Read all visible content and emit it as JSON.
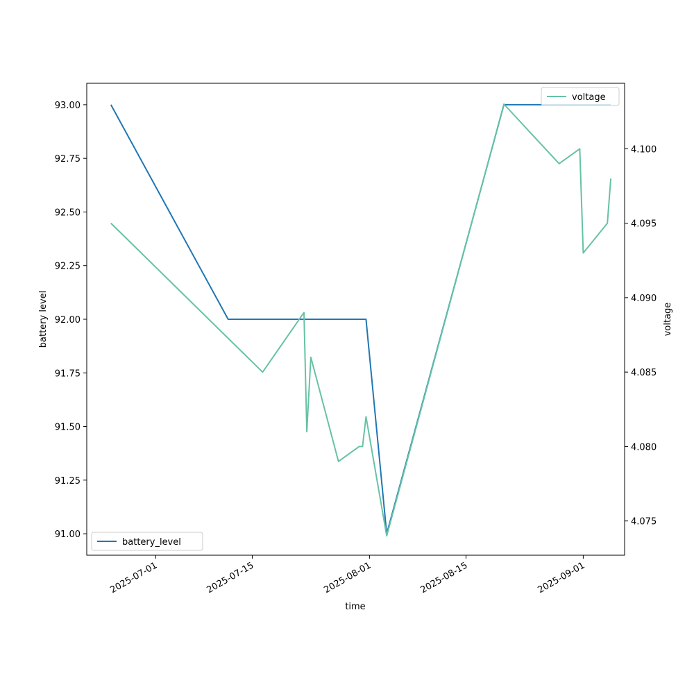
{
  "chart_data": {
    "type": "line",
    "xlabel": "time",
    "ylabel": "battery level",
    "y2label": "voltage",
    "xlim": [
      "2025-06-21",
      "2025-09-07"
    ],
    "ylim": [
      90.9,
      93.1
    ],
    "y2lim": [
      4.0727,
      4.1044
    ],
    "x_ticks": [
      "2025-07-01",
      "2025-07-15",
      "2025-08-01",
      "2025-08-15",
      "2025-09-01"
    ],
    "y_ticks": [
      "91.00",
      "91.25",
      "91.50",
      "91.75",
      "92.00",
      "92.25",
      "92.50",
      "92.75",
      "93.00"
    ],
    "y2_ticks": [
      "4.075",
      "4.080",
      "4.085",
      "4.090",
      "4.095",
      "4.100"
    ],
    "series": [
      {
        "name": "battery_level",
        "axis": "left",
        "color": "#1f77b4",
        "legend": "bottom-left",
        "points": [
          {
            "x": "2025-06-24T12:00",
            "y": 93.0
          },
          {
            "x": "2025-07-11T12:00",
            "y": 92.0
          },
          {
            "x": "2025-07-31T12:00",
            "y": 92.0
          },
          {
            "x": "2025-08-03T12:00",
            "y": 91.0
          },
          {
            "x": "2025-08-20T12:00",
            "y": 93.0
          },
          {
            "x": "2025-09-05T00:00",
            "y": 93.0
          }
        ]
      },
      {
        "name": "voltage",
        "axis": "right",
        "color": "#66c2a5",
        "legend": "top-right",
        "points": [
          {
            "x": "2025-06-24T12:00",
            "y": 4.095
          },
          {
            "x": "2025-07-16T12:00",
            "y": 4.085
          },
          {
            "x": "2025-07-22T12:00",
            "y": 4.089
          },
          {
            "x": "2025-07-22T22:00",
            "y": 4.081
          },
          {
            "x": "2025-07-23T12:00",
            "y": 4.086
          },
          {
            "x": "2025-07-27T12:00",
            "y": 4.079
          },
          {
            "x": "2025-07-30T12:00",
            "y": 4.08
          },
          {
            "x": "2025-07-31T00:00",
            "y": 4.08
          },
          {
            "x": "2025-07-31T12:00",
            "y": 4.082
          },
          {
            "x": "2025-08-03T12:00",
            "y": 4.074
          },
          {
            "x": "2025-08-20T12:00",
            "y": 4.103
          },
          {
            "x": "2025-08-28T12:00",
            "y": 4.099
          },
          {
            "x": "2025-08-31T12:00",
            "y": 4.1
          },
          {
            "x": "2025-09-01T00:00",
            "y": 4.093
          },
          {
            "x": "2025-09-04T12:00",
            "y": 4.095
          },
          {
            "x": "2025-09-05T00:00",
            "y": 4.098
          }
        ]
      }
    ]
  }
}
